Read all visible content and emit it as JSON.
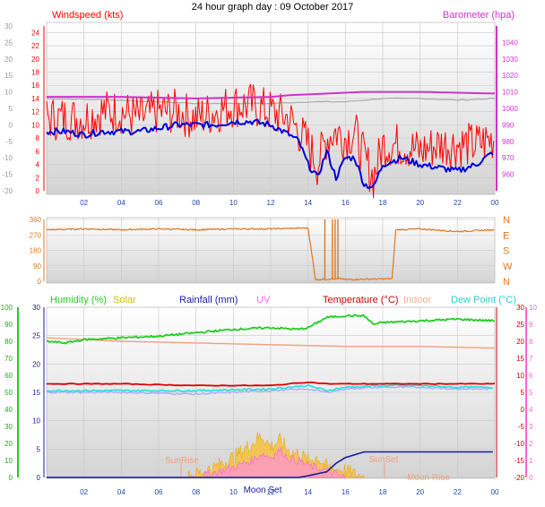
{
  "title": "24 hour graph day : 09 October 2017",
  "colors": {
    "windspeed": "#ff0000",
    "wind_avg": "#0000dd",
    "barometer": "#cc33cc",
    "baro_gray": "#aaaaaa",
    "direction": "#e07820",
    "humidity": "#22cc22",
    "solar": "#f0b000",
    "rainfall": "#1a1aa0",
    "uv": "#ff66ff",
    "temperature": "#dd0000",
    "indoor": "#f0a080",
    "dewpoint": "#33dddd",
    "dew_alt": "#aaaaff",
    "sunrise": "#f0a080",
    "moon": "#1a1aa0",
    "grid": "#c8c8c8",
    "plot_bg_top": "#ffffff",
    "plot_bg_bottom": "#d8d8d8"
  },
  "x_ticks": [
    "02",
    "04",
    "06",
    "08",
    "10",
    "12",
    "14",
    "16",
    "18",
    "20",
    "22",
    "00"
  ],
  "chart_data": [
    {
      "type": "line",
      "name": "wind_and_barometer",
      "left_axis": {
        "label": "Windspeed (kts)",
        "ticks": [
          "0",
          "2",
          "4",
          "6",
          "8",
          "10",
          "12",
          "14",
          "16",
          "18",
          "20",
          "22",
          "24"
        ],
        "range": [
          0,
          25
        ]
      },
      "right_axis": {
        "label": "Barometer (hpa)",
        "ticks": [
          "960",
          "970",
          "980",
          "990",
          "1000",
          "1010",
          "1020",
          "1030",
          "1040"
        ],
        "range": [
          950,
          1050
        ]
      },
      "outer_left_axis": {
        "ticks": [
          "-20",
          "-15",
          "-10",
          "-5",
          "0",
          "5",
          "10",
          "15",
          "20",
          "25",
          "30"
        ],
        "range": [
          -20,
          30
        ]
      },
      "series": [
        {
          "key": "gust",
          "hours": [
            0,
            1,
            2,
            3,
            4,
            5,
            6,
            7,
            8,
            9,
            10,
            11,
            12,
            13,
            13.5,
            14,
            14.5,
            15,
            15.5,
            16,
            16.5,
            17,
            17.5,
            18,
            19,
            20,
            21,
            22,
            23,
            24
          ],
          "values": [
            11,
            11,
            11,
            12,
            12,
            11,
            12,
            12,
            11,
            12,
            13,
            13,
            12,
            11,
            9,
            7,
            4,
            8,
            9,
            8,
            9,
            5,
            2,
            7,
            7,
            6,
            7,
            7,
            7,
            8
          ]
        },
        {
          "key": "average",
          "hours": [
            0,
            1,
            2,
            3,
            4,
            5,
            6,
            7,
            8,
            9,
            10,
            11,
            12,
            13,
            13.5,
            14,
            14.5,
            15,
            15.5,
            16,
            16.5,
            17,
            17.5,
            18,
            19,
            20,
            21,
            22,
            23,
            24
          ],
          "values": [
            9,
            9,
            8.5,
            9,
            9,
            9,
            9.5,
            10,
            10,
            10,
            10.5,
            10.5,
            10,
            8.5,
            7.5,
            4,
            2,
            6,
            2,
            5,
            5,
            1,
            0.5,
            4,
            5,
            4,
            3.5,
            3,
            4,
            6
          ]
        },
        {
          "key": "barometer",
          "hours": [
            0,
            4,
            8,
            12,
            13,
            15,
            17,
            18,
            20,
            24
          ],
          "values": [
            1007,
            1007,
            1006,
            1007,
            1008,
            1009,
            1010,
            1010,
            1010,
            1009
          ]
        },
        {
          "key": "barometer_gray",
          "hours": [
            0,
            4,
            8,
            12,
            14,
            16,
            18,
            20,
            22,
            24
          ],
          "values": [
            1006,
            1005,
            1003,
            1003,
            1004,
            1004,
            1006,
            1006,
            1005,
            1006
          ]
        }
      ]
    },
    {
      "type": "line",
      "name": "wind_direction",
      "left_axis": {
        "ticks": [
          "0",
          "90",
          "180",
          "270",
          "360"
        ],
        "range": [
          0,
          360
        ]
      },
      "right_axis": {
        "ticks": [
          "N",
          "W",
          "S",
          "E",
          "N"
        ]
      },
      "series": [
        {
          "key": "direction",
          "hours": [
            0,
            2,
            4,
            6,
            8,
            10,
            12,
            14,
            14.4,
            14.5,
            15.8,
            16,
            18.5,
            18.7,
            20,
            22,
            24
          ],
          "values": [
            300,
            305,
            300,
            305,
            300,
            305,
            305,
            310,
            10,
            10,
            15,
            10,
            15,
            300,
            305,
            290,
            300
          ]
        }
      ]
    },
    {
      "type": "line",
      "name": "climate",
      "labels": {
        "humidity": "Humidity (%)",
        "solar": "Solar",
        "rainfall": "Rainfall (mm)",
        "uv": "UV",
        "temperature": "Temperature (°C)",
        "indoor": "Indoor",
        "dewpoint": "Dew Point (°C)"
      },
      "axis_humidity": {
        "ticks": [
          "0",
          "10",
          "20",
          "30",
          "40",
          "50",
          "60",
          "70",
          "80",
          "90",
          "100"
        ],
        "range": [
          0,
          100
        ]
      },
      "axis_rain": {
        "ticks": [
          "0",
          "5",
          "10",
          "15",
          "20",
          "25",
          "30"
        ],
        "range": [
          0,
          30
        ]
      },
      "axis_temp": {
        "ticks": [
          "-20",
          "-15",
          "-10",
          "-5",
          "0",
          "5",
          "10",
          "15",
          "20",
          "25",
          "30"
        ],
        "range": [
          -20,
          30
        ]
      },
      "axis_uv": {
        "ticks": [
          "0",
          "1",
          "2",
          "3",
          "4",
          "5",
          "6",
          "7",
          "8",
          "9",
          "10"
        ],
        "range": [
          0,
          10
        ]
      },
      "annotations": [
        "SunRise",
        "SunSet",
        "Moon Rise",
        "Moon Set"
      ],
      "series": [
        {
          "key": "humidity",
          "hours": [
            0,
            1,
            2,
            4,
            6,
            8,
            10,
            12,
            13.5,
            14,
            15,
            16,
            17,
            17.5,
            18,
            20,
            22,
            24
          ],
          "values": [
            80,
            79,
            81,
            82,
            83,
            85,
            87,
            88,
            87,
            88,
            94,
            95,
            95,
            90,
            91,
            92,
            93,
            92
          ]
        },
        {
          "key": "indoor",
          "hours": [
            0,
            4,
            8,
            12,
            16,
            20,
            24
          ],
          "values": [
            21,
            20,
            19.5,
            19,
            18.5,
            18.5,
            18
          ]
        },
        {
          "key": "temperature",
          "hours": [
            0,
            4,
            8,
            12,
            14,
            15,
            16,
            18,
            20,
            22,
            24
          ],
          "values": [
            7.5,
            7.5,
            7,
            7,
            8,
            7.5,
            7.5,
            7.5,
            7.5,
            7.5,
            7.5
          ]
        },
        {
          "key": "dewpoint",
          "hours": [
            0,
            4,
            8,
            12,
            14,
            15,
            16,
            18,
            20,
            22,
            24
          ],
          "values": [
            5.5,
            5.5,
            5.5,
            6,
            7,
            5.5,
            6.5,
            7,
            7,
            6.5,
            6.5
          ]
        },
        {
          "key": "dewpoint_alt",
          "hours": [
            0,
            4,
            8,
            12,
            14,
            15,
            16,
            18,
            20,
            22,
            24
          ],
          "values": [
            5,
            5,
            4.5,
            5.5,
            6,
            5,
            6,
            6.5,
            6.5,
            6,
            6
          ]
        },
        {
          "key": "rainfall",
          "hours": [
            0,
            12,
            13.5,
            14,
            15,
            15.5,
            16,
            16.5,
            17,
            24
          ],
          "values": [
            0,
            0,
            0,
            0.3,
            1,
            2.5,
            3.5,
            4,
            4.5,
            4.5
          ]
        },
        {
          "key": "solar",
          "hours": [
            7.5,
            8,
            9,
            10,
            10.5,
            11,
            11.5,
            12,
            12.5,
            13,
            13.5,
            14,
            14.5,
            15,
            16,
            16.5,
            17
          ],
          "values": [
            0,
            0.2,
            0.6,
            1.2,
            1.6,
            2,
            2.5,
            1.8,
            2.2,
            1.5,
            1.4,
            1,
            1.2,
            0.6,
            0.4,
            0.2,
            0
          ]
        },
        {
          "key": "uv",
          "hours": [
            8,
            9,
            10,
            11,
            11.5,
            12,
            12.5,
            13,
            13.5,
            14,
            15,
            16
          ],
          "values": [
            0,
            0.3,
            0.6,
            1,
            1.4,
            1.2,
            1.6,
            1.1,
            1,
            0.7,
            0.4,
            0
          ]
        }
      ]
    }
  ]
}
